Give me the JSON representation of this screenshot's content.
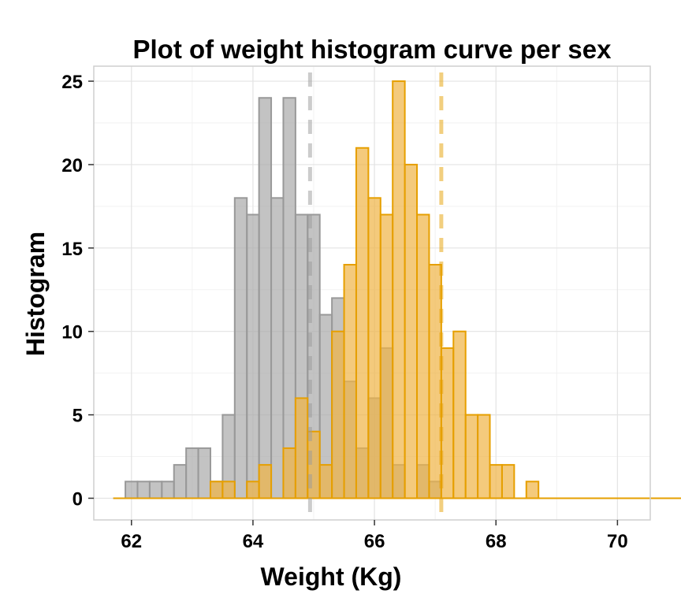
{
  "chart_data": {
    "type": "histogram",
    "title": "Plot of weight histogram curve per sex",
    "xlabel": "Weight (Kg)",
    "ylabel": "Histogram",
    "xlim": [
      61.38,
      70.54
    ],
    "ylim": [
      -1.3,
      25.9
    ],
    "x_ticks": [
      "62",
      "64",
      "66",
      "68",
      "70"
    ],
    "y_ticks": [
      "0",
      "5",
      "10",
      "15",
      "20",
      "25"
    ],
    "grid": true,
    "bin_width": 0.2,
    "bin_start": 61.7,
    "series": [
      {
        "color": "#999999",
        "fill": "#a9a9a9",
        "fill_opacity": 0.7,
        "mean": 64.94,
        "counts": [
          0,
          1,
          1,
          1,
          1,
          2,
          3,
          3,
          1,
          5,
          18,
          17,
          24,
          18,
          24,
          17,
          17,
          11,
          12,
          7,
          3,
          6,
          9,
          2,
          0,
          2,
          1,
          0,
          0,
          0,
          0,
          0,
          0,
          0,
          0,
          0,
          0,
          0,
          0,
          0,
          0,
          0,
          0,
          0,
          0,
          0,
          0,
          0,
          0,
          0,
          0,
          0,
          0,
          0,
          0,
          0,
          0,
          0,
          0,
          0,
          0,
          0,
          0,
          0,
          0,
          0,
          0,
          0,
          0,
          0,
          0,
          0,
          0,
          0,
          0,
          0,
          0,
          0
        ]
      },
      {
        "color": "#e69f00",
        "fill": "#f0b445",
        "fill_opacity": 0.7,
        "mean": 67.1,
        "counts": [
          0,
          0,
          0,
          0,
          0,
          0,
          0,
          0,
          1,
          1,
          0,
          1,
          2,
          0,
          3,
          6,
          4,
          2,
          10,
          14,
          21,
          18,
          17,
          25,
          20,
          17,
          14,
          9,
          10,
          5,
          5,
          2,
          2,
          0,
          1,
          0,
          0,
          0,
          0,
          0,
          0,
          0,
          0,
          0,
          0,
          0,
          0,
          0,
          0,
          0,
          0,
          0,
          0,
          0,
          0,
          0,
          0,
          0,
          0,
          0,
          0,
          0,
          0,
          0,
          0,
          0,
          0,
          0,
          0,
          0,
          0,
          0,
          0,
          0,
          0,
          0,
          0,
          0
        ]
      }
    ]
  }
}
